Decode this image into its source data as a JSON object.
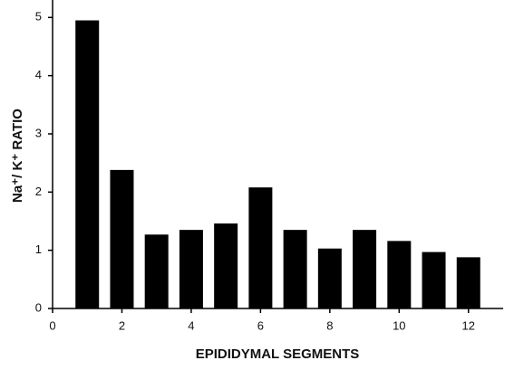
{
  "chart_data": {
    "type": "bar",
    "x_label": "EPIDIDYMAL SEGMENTS",
    "y_label": "Na⁺/ K⁺ RATIO",
    "x": [
      1,
      2,
      3,
      4,
      5,
      6,
      7,
      8,
      9,
      10,
      11,
      12
    ],
    "values": [
      4.95,
      2.38,
      1.27,
      1.35,
      1.46,
      2.08,
      1.35,
      1.03,
      1.35,
      1.16,
      0.97,
      0.88
    ],
    "color": "#000000",
    "xlim": [
      0,
      13
    ],
    "xticks": [
      0,
      2,
      4,
      6,
      8,
      10,
      12
    ],
    "ylim": [
      0,
      5.3
    ],
    "yticks": [
      0,
      1,
      2,
      3,
      4,
      5
    ],
    "grid": false
  }
}
